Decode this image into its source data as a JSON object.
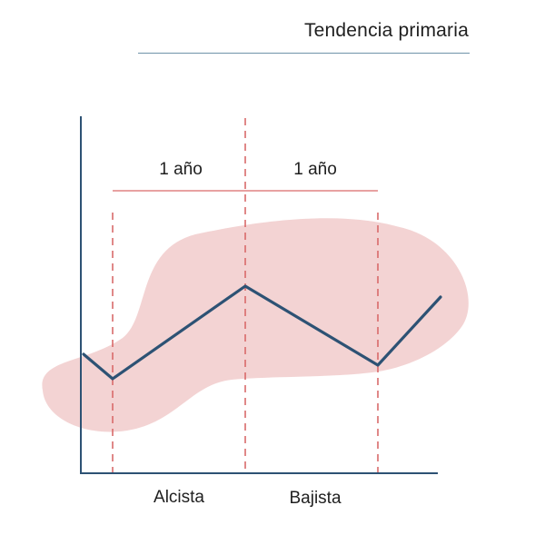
{
  "title": "Tendencia primaria",
  "periods": [
    "1 año",
    "1 año"
  ],
  "phases": [
    "Alcista",
    "Bajista"
  ],
  "colors": {
    "trend_line": "#2d5274",
    "axis": "#2d5274",
    "divider": "#d96a6a",
    "highlight": "#f3d3d3",
    "title_rule": "#6f93a9"
  }
}
